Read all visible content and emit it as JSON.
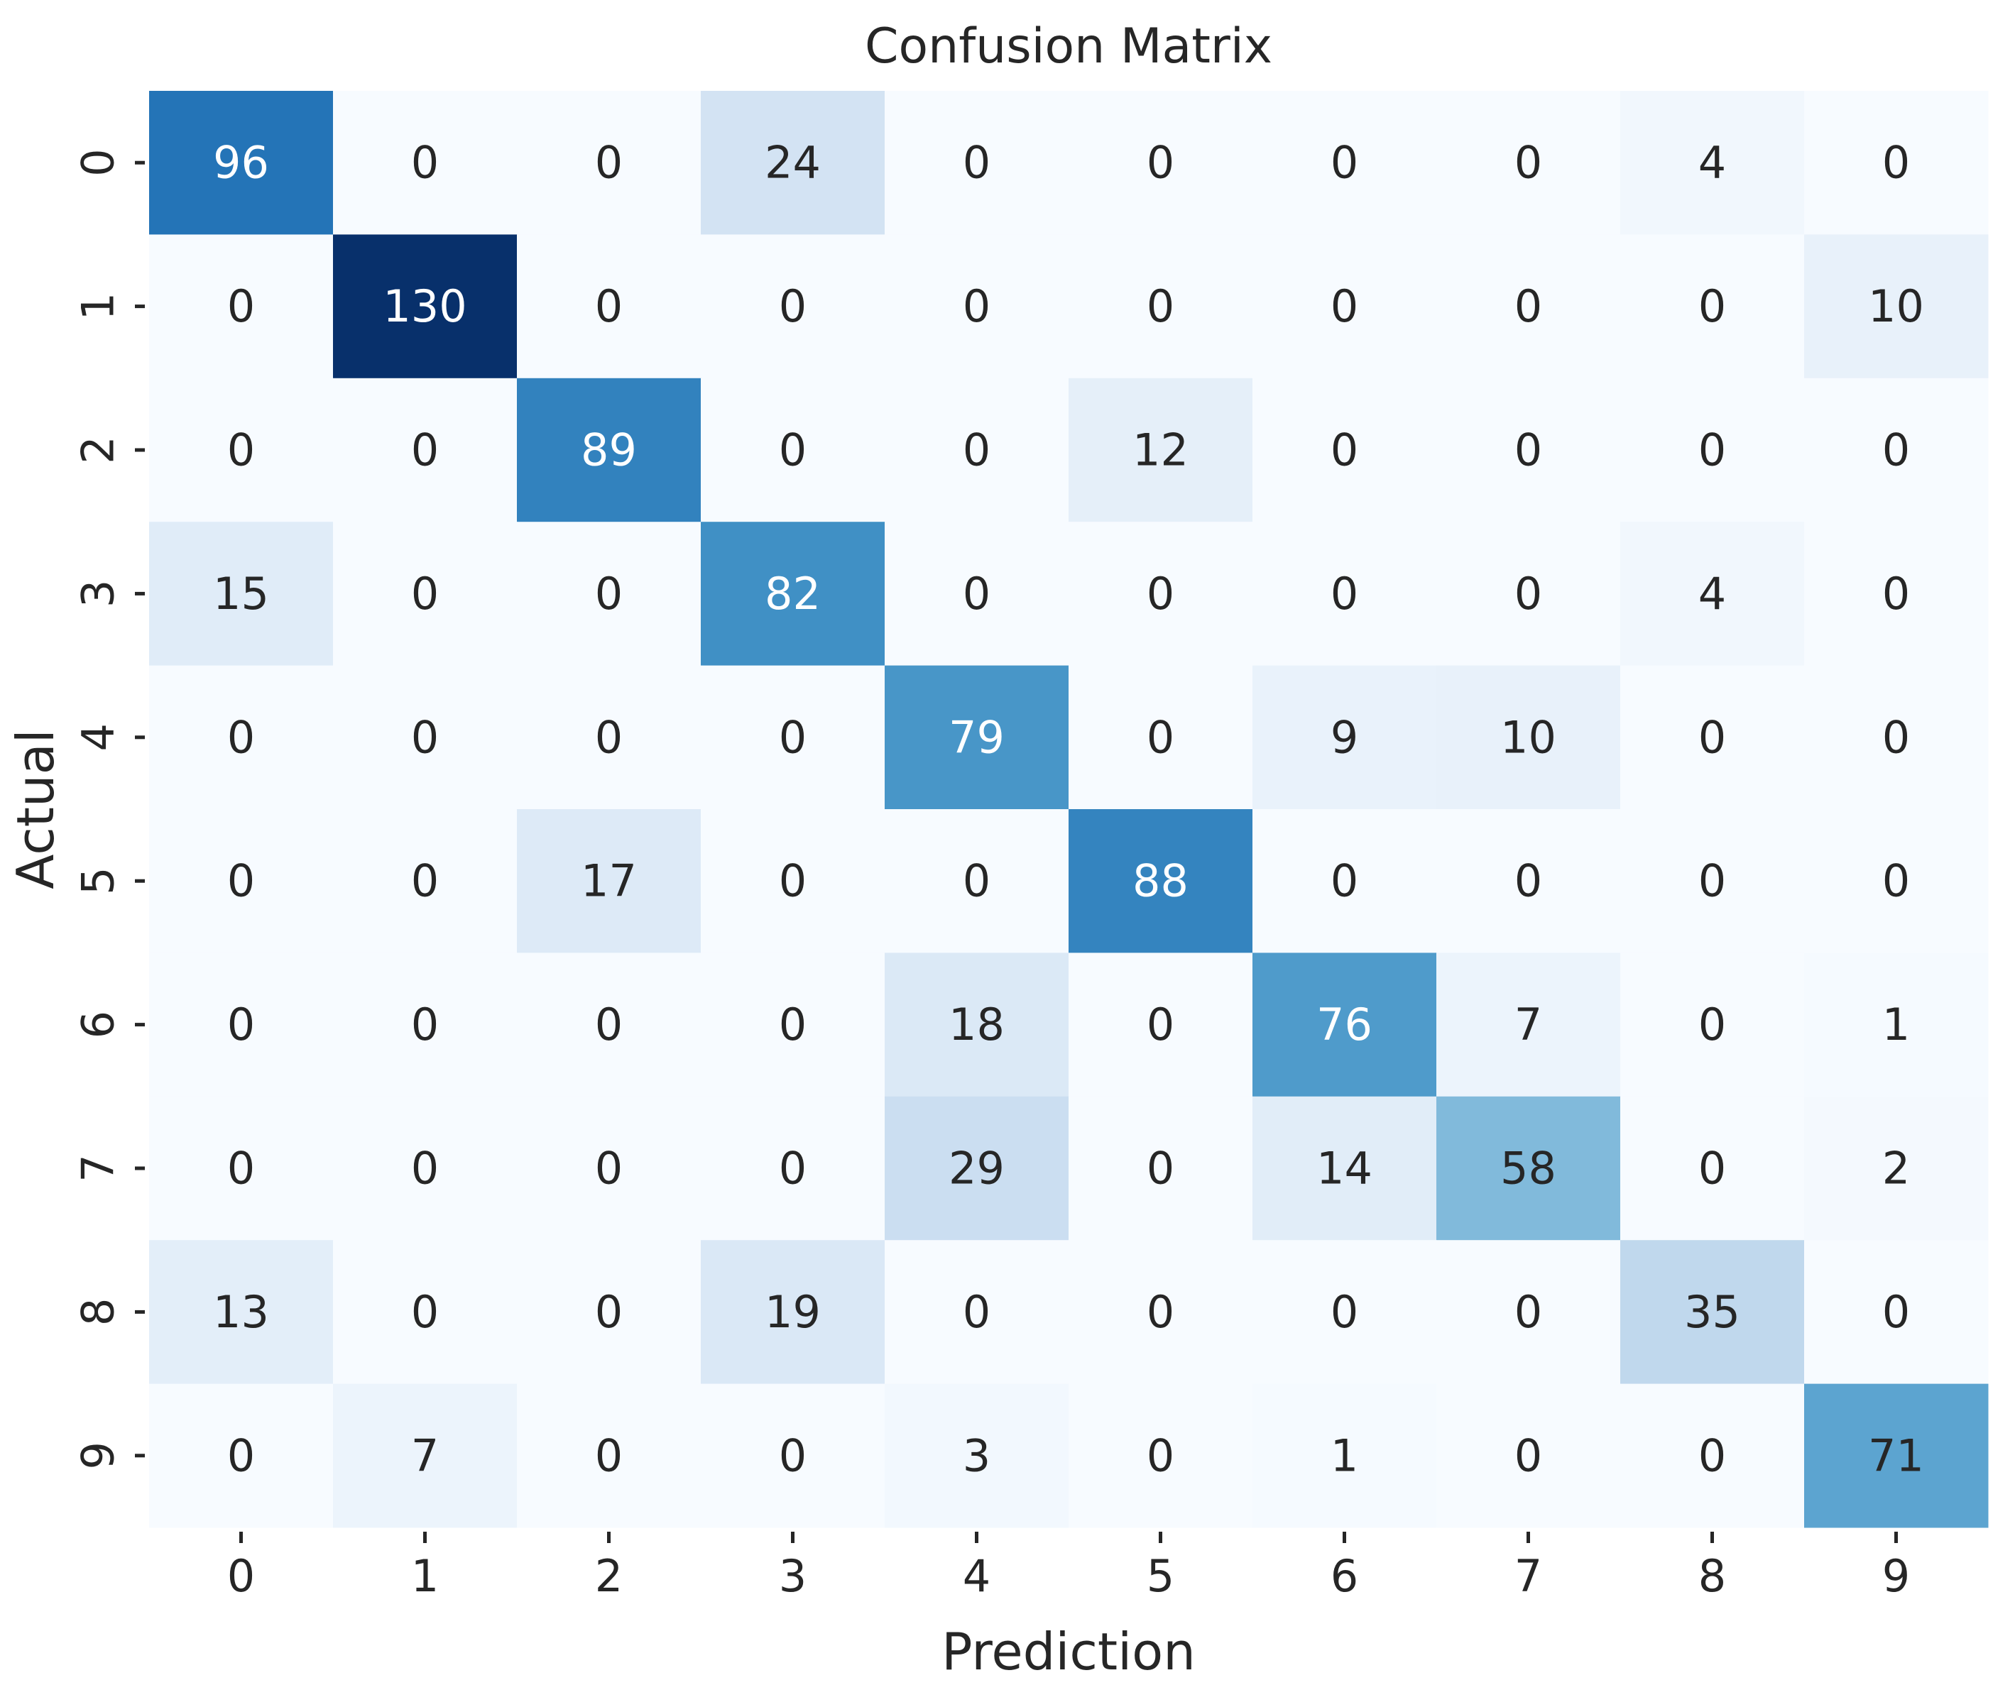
{
  "chart_data": {
    "type": "heatmap",
    "title": "Confusion Matrix",
    "xlabel": "Prediction",
    "ylabel": "Actual",
    "x_categories": [
      "0",
      "1",
      "2",
      "3",
      "4",
      "5",
      "6",
      "7",
      "8",
      "9"
    ],
    "y_categories": [
      "0",
      "1",
      "2",
      "3",
      "4",
      "5",
      "6",
      "7",
      "8",
      "9"
    ],
    "values": [
      [
        96,
        0,
        0,
        24,
        0,
        0,
        0,
        0,
        4,
        0
      ],
      [
        0,
        130,
        0,
        0,
        0,
        0,
        0,
        0,
        0,
        10
      ],
      [
        0,
        0,
        89,
        0,
        0,
        12,
        0,
        0,
        0,
        0
      ],
      [
        15,
        0,
        0,
        82,
        0,
        0,
        0,
        0,
        4,
        0
      ],
      [
        0,
        0,
        0,
        0,
        79,
        0,
        9,
        10,
        0,
        0
      ],
      [
        0,
        0,
        17,
        0,
        0,
        88,
        0,
        0,
        0,
        0
      ],
      [
        0,
        0,
        0,
        0,
        18,
        0,
        76,
        7,
        0,
        1
      ],
      [
        0,
        0,
        0,
        0,
        29,
        0,
        14,
        58,
        0,
        2
      ],
      [
        13,
        0,
        0,
        19,
        0,
        0,
        0,
        0,
        35,
        0
      ],
      [
        0,
        7,
        0,
        0,
        3,
        0,
        1,
        0,
        0,
        71
      ]
    ],
    "colormap": "Blues",
    "vmin": 0,
    "vmax": 130,
    "colorbar": false,
    "annotations": true,
    "colors": {
      "low": "#f7fbff",
      "high": "#08306b",
      "text_dark": "#262626",
      "text_light": "#ffffff"
    }
  }
}
